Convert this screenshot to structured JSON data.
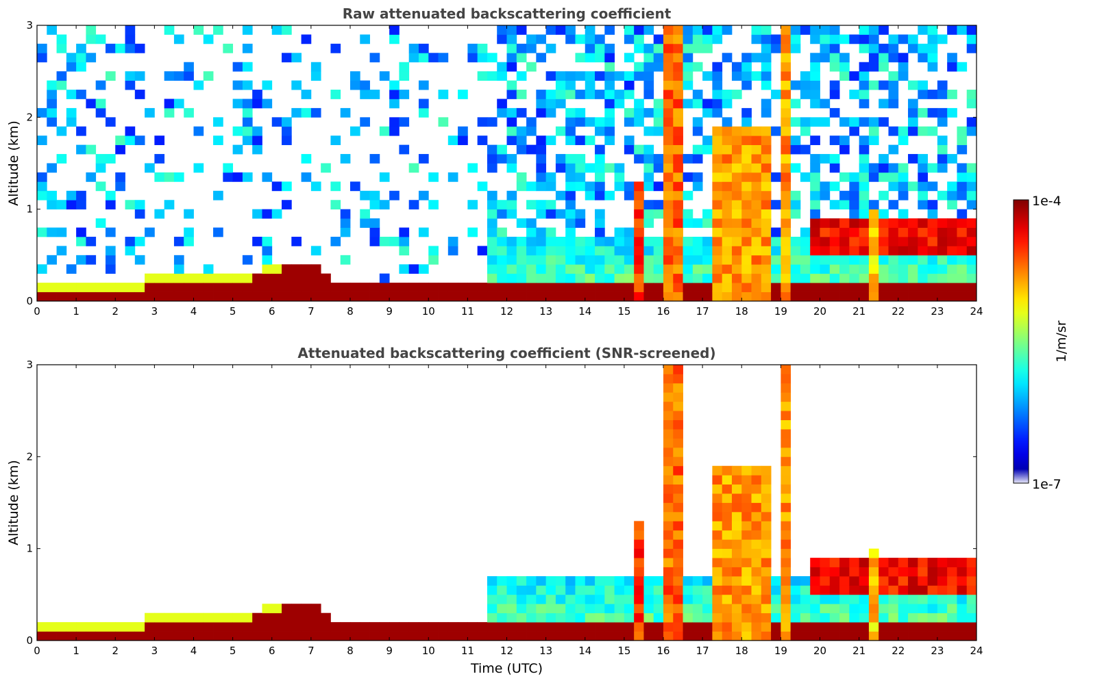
{
  "chart_data": [
    {
      "type": "heatmap",
      "title": "Raw attenuated backscattering coefficient",
      "xlabel": "",
      "ylabel": "Altitude (km)",
      "xlim": [
        0,
        24
      ],
      "ylim": [
        0,
        3
      ],
      "xticks": [
        "0",
        "1",
        "2",
        "3",
        "4",
        "5",
        "6",
        "7",
        "8",
        "9",
        "10",
        "11",
        "12",
        "13",
        "14",
        "15",
        "16",
        "17",
        "18",
        "19",
        "20",
        "21",
        "22",
        "23",
        "24"
      ],
      "yticks": [
        "0",
        "1",
        "2",
        "3"
      ],
      "screened": false,
      "surface_layer_top_km": [
        {
          "t": 0,
          "h": 0.1
        },
        {
          "t": 2.6,
          "h": 0.1
        },
        {
          "t": 2.7,
          "h": 0.2
        },
        {
          "t": 4,
          "h": 0.2
        },
        {
          "t": 5.5,
          "h": 0.25
        },
        {
          "t": 6.5,
          "h": 0.4
        },
        {
          "t": 7.2,
          "h": 0.35
        },
        {
          "t": 7.5,
          "h": 0.2
        },
        {
          "t": 11.6,
          "h": 0.15
        }
      ],
      "events": [
        {
          "t0": 15.2,
          "t1": 15.5,
          "h0": 0,
          "h1": 1.3,
          "level": 0.9
        },
        {
          "t0": 16.0,
          "t1": 16.6,
          "h0": 0,
          "h1": 3.0,
          "level": 0.85
        },
        {
          "t0": 17.3,
          "t1": 18.7,
          "h0": 0,
          "h1": 1.9,
          "level": 0.8
        },
        {
          "t0": 18.9,
          "t1": 19.2,
          "h0": 0,
          "h1": 3.0,
          "level": 0.8
        },
        {
          "t0": 21.3,
          "t1": 21.6,
          "h0": 0,
          "h1": 1.0,
          "level": 0.75
        },
        {
          "t0": 19.7,
          "t1": 24.0,
          "h0": 0.5,
          "h1": 0.9,
          "level": 0.95
        }
      ]
    },
    {
      "type": "heatmap",
      "title": "Attenuated backscattering coefficient (SNR-screened)",
      "xlabel": "Time (UTC)",
      "ylabel": "Altitude (km)",
      "xlim": [
        0,
        24
      ],
      "ylim": [
        0,
        3
      ],
      "xticks": [
        "0",
        "1",
        "2",
        "3",
        "4",
        "5",
        "6",
        "7",
        "8",
        "9",
        "10",
        "11",
        "12",
        "13",
        "14",
        "15",
        "16",
        "17",
        "18",
        "19",
        "20",
        "21",
        "22",
        "23",
        "24"
      ],
      "yticks": [
        "0",
        "1",
        "2",
        "3"
      ],
      "screened": true,
      "surface_layer_top_km": [
        {
          "t": 0,
          "h": 0.1
        },
        {
          "t": 2.6,
          "h": 0.1
        },
        {
          "t": 2.7,
          "h": 0.2
        },
        {
          "t": 4,
          "h": 0.2
        },
        {
          "t": 5.5,
          "h": 0.25
        },
        {
          "t": 6.5,
          "h": 0.4
        },
        {
          "t": 7.2,
          "h": 0.35
        },
        {
          "t": 7.5,
          "h": 0.2
        },
        {
          "t": 11.6,
          "h": 0.15
        }
      ],
      "events": [
        {
          "t0": 15.2,
          "t1": 15.5,
          "h0": 0,
          "h1": 1.3,
          "level": 0.9
        },
        {
          "t0": 16.0,
          "t1": 16.6,
          "h0": 0,
          "h1": 3.0,
          "level": 0.85
        },
        {
          "t0": 17.3,
          "t1": 18.7,
          "h0": 0,
          "h1": 1.9,
          "level": 0.8
        },
        {
          "t0": 18.9,
          "t1": 19.2,
          "h0": 0,
          "h1": 3.0,
          "level": 0.8
        },
        {
          "t0": 21.3,
          "t1": 21.6,
          "h0": 0,
          "h1": 1.0,
          "level": 0.75
        },
        {
          "t0": 19.7,
          "t1": 24.0,
          "h0": 0.5,
          "h1": 0.9,
          "level": 0.95
        }
      ]
    }
  ],
  "colorbar": {
    "max_label": "1e-4",
    "min_label": "1e-7",
    "unit_label": "1/m/sr",
    "colormap": "jet"
  }
}
